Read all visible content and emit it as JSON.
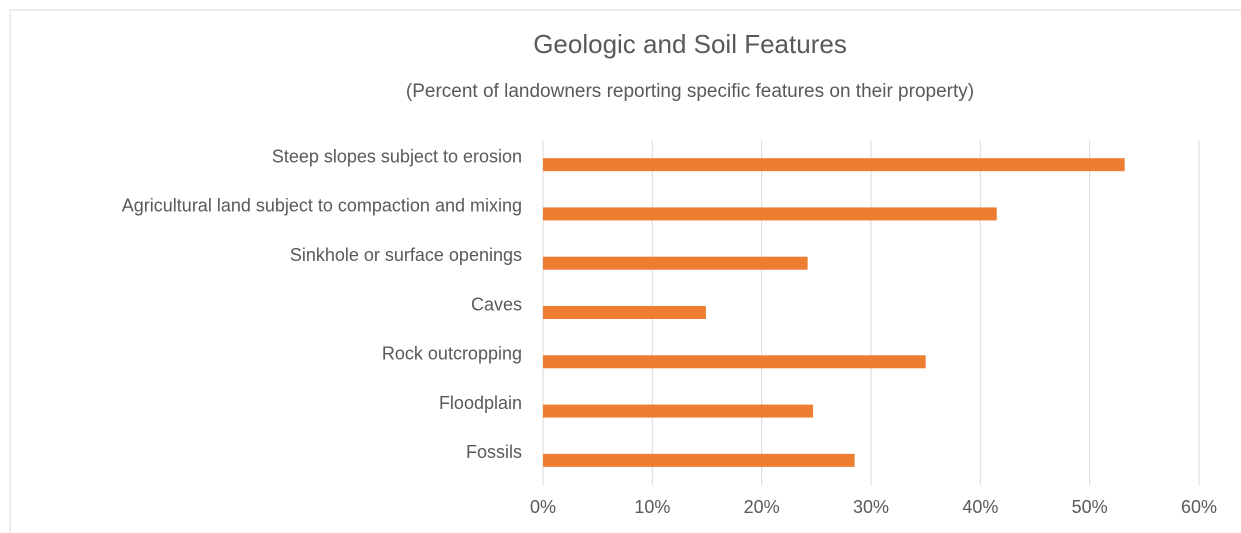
{
  "chart_data": {
    "type": "bar",
    "orientation": "horizontal",
    "title": "Geologic  and Soil Features",
    "subtitle": "(Percent of landowners reporting specific features on their property)",
    "categories": [
      "Steep slopes subject to erosion",
      "Agricultural land subject to compaction and mixing",
      "Sinkhole or surface openings",
      "Caves",
      "Rock outcropping",
      "Floodplain",
      "Fossils"
    ],
    "values": [
      53.2,
      41.5,
      24.2,
      14.9,
      35,
      24.7,
      28.5
    ],
    "color": "#ed7d31",
    "xlim": [
      0,
      60
    ],
    "xticks": [
      {
        "value": 0,
        "label": "0%"
      },
      {
        "value": 10,
        "label": "10%"
      },
      {
        "value": 20,
        "label": "20%"
      },
      {
        "value": 30,
        "label": "30%"
      },
      {
        "value": 40,
        "label": "40%"
      },
      {
        "value": 50,
        "label": "50%"
      },
      {
        "value": 60,
        "label": "60%"
      }
    ],
    "grid": true
  }
}
